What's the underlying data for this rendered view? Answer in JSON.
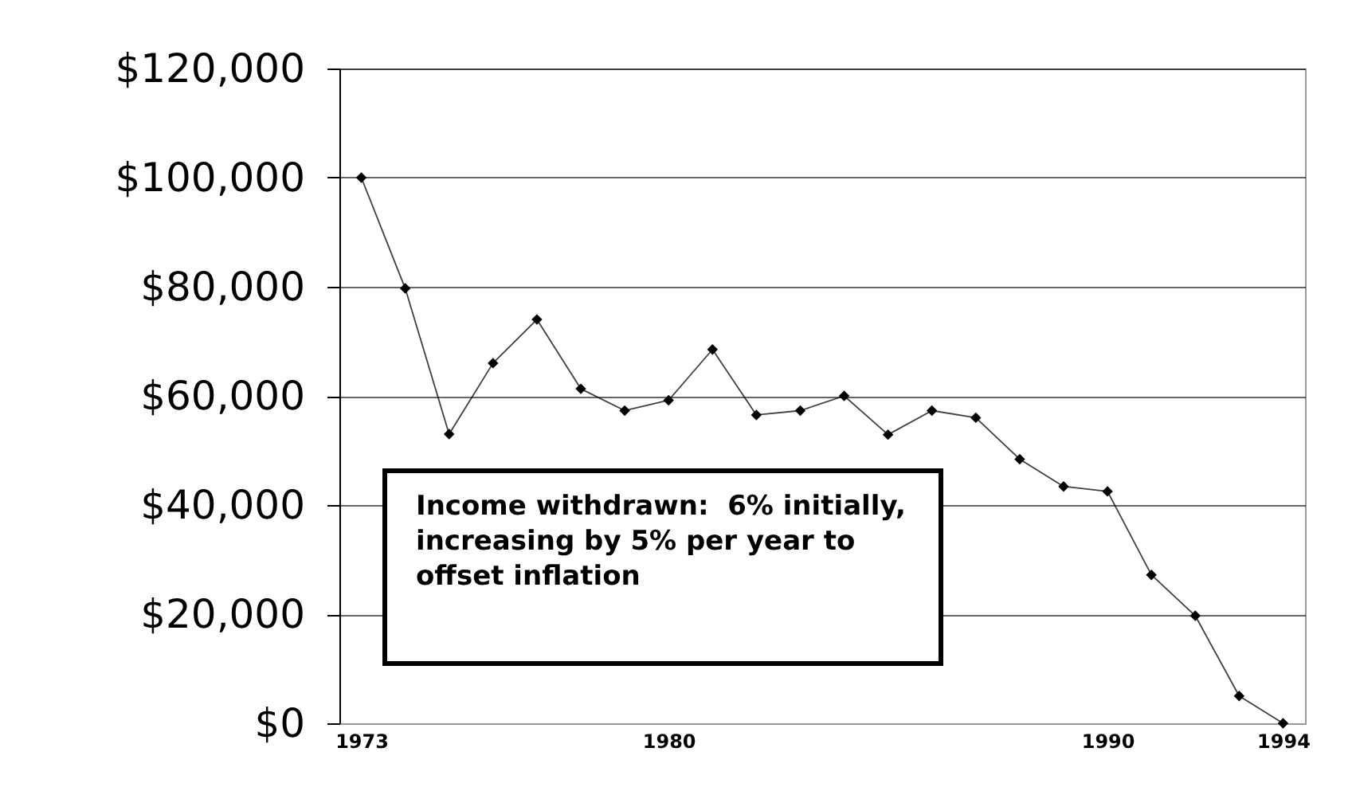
{
  "chart_data": {
    "type": "line",
    "x": [
      1973,
      1974,
      1975,
      1976,
      1977,
      1978,
      1979,
      1980,
      1981,
      1982,
      1983,
      1984,
      1985,
      1986,
      1987,
      1988,
      1989,
      1990,
      1991,
      1992,
      1993,
      1994
    ],
    "series": [
      {
        "color": "#000000",
        "values": [
          100000,
          79700,
          53000,
          66000,
          74000,
          61300,
          57300,
          59200,
          68500,
          56500,
          57300,
          60000,
          52900,
          57300,
          56000,
          48400,
          43400,
          42500,
          27200,
          19700,
          5000,
          0
        ]
      }
    ],
    "xlim": [
      1972.5,
      1994.5
    ],
    "xticks": [
      1973,
      1980,
      1990,
      1994
    ],
    "ylim": [
      0,
      120000
    ],
    "yticks": [
      {
        "value": 0,
        "label": "$0"
      },
      {
        "value": 20000,
        "label": "$20,000"
      },
      {
        "value": 40000,
        "label": "$40,000"
      },
      {
        "value": 60000,
        "label": "$60,000"
      },
      {
        "value": 80000,
        "label": "$80,000"
      },
      {
        "value": 100000,
        "label": "$100,000"
      },
      {
        "value": 120000,
        "label": "$120,000"
      }
    ],
    "grid": "y",
    "marker": "diamond",
    "line_style": "solid",
    "annotations": [
      "Income withdrawn:  6% initially, increasing by 5% per year to offset inflation"
    ]
  }
}
